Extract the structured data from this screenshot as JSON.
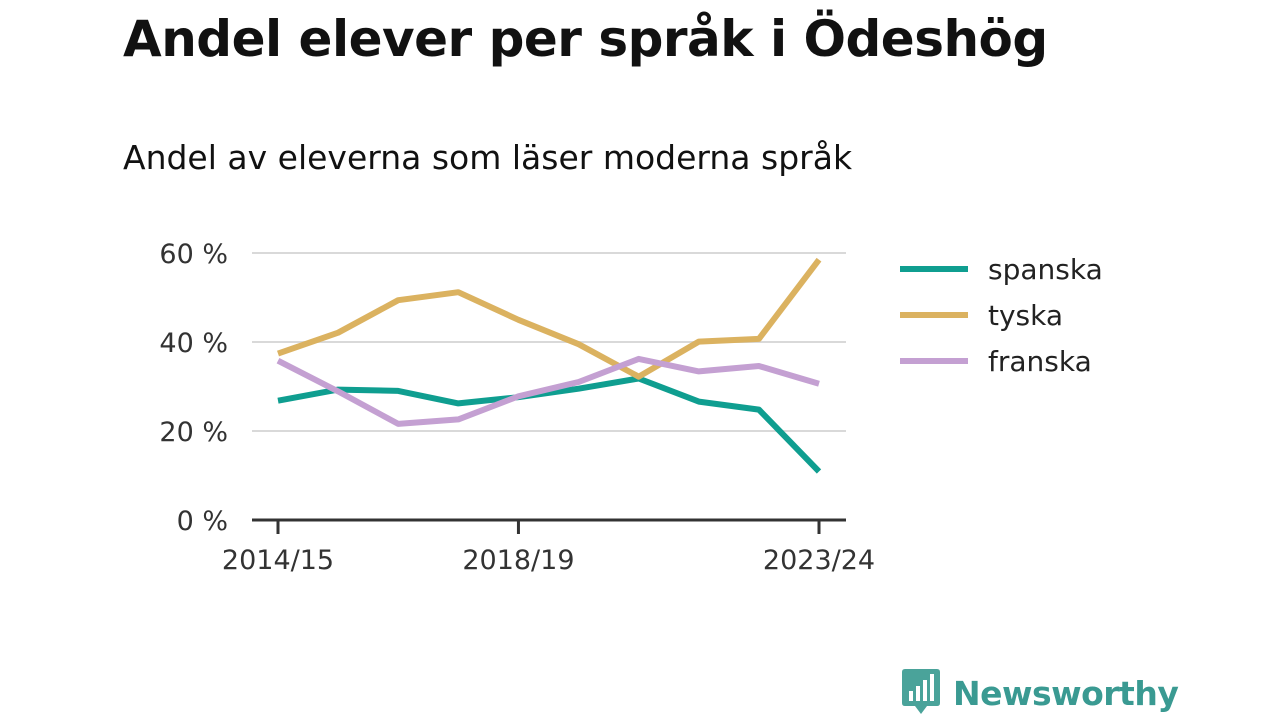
{
  "title": "Andel elever per språk i Ödeshög",
  "subtitle": "Andel av eleverna som läser moderna språk",
  "brand": {
    "name": "Newsworthy",
    "logo_icon": "newsworthy-bar-chart-icon"
  },
  "chart_data": {
    "type": "line",
    "x": [
      "2014/15",
      "2015/16",
      "2016/17",
      "2017/18",
      "2018/19",
      "2019/20",
      "2020/21",
      "2021/22",
      "2022/23",
      "2023/24"
    ],
    "x_tick_labels": [
      "2014/15",
      "2018/19",
      "2023/24"
    ],
    "y_ticks": [
      0,
      20,
      40,
      60
    ],
    "y_tick_labels": [
      "0 %",
      "20 %",
      "40 %",
      "60 %"
    ],
    "ylim": [
      0,
      60
    ],
    "y_unit": "%",
    "grid": true,
    "legend_position": "right",
    "series": [
      {
        "name": "spanska",
        "color": "#0f9e90",
        "values": [
          26.8,
          29.3,
          29.0,
          26.2,
          27.6,
          29.5,
          31.8,
          26.6,
          24.8,
          10.9
        ]
      },
      {
        "name": "tyska",
        "color": "#dbb260",
        "values": [
          37.4,
          42.1,
          49.4,
          51.2,
          45.0,
          39.5,
          32.2,
          40.1,
          40.7,
          58.5
        ]
      },
      {
        "name": "franska",
        "color": "#c4a0d2",
        "values": [
          35.8,
          28.9,
          21.6,
          22.6,
          27.8,
          31.0,
          36.2,
          33.4,
          34.6,
          30.6
        ]
      }
    ]
  }
}
